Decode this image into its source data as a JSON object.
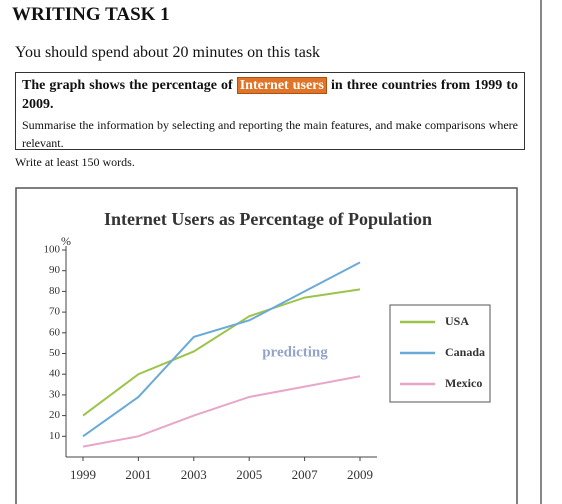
{
  "header": {
    "title": "WRITING TASK 1",
    "instruction": "You should spend about 20 minutes on this task"
  },
  "task": {
    "intro_before": "The graph shows the percentage of",
    "highlight": "Internet users",
    "intro_after": "in three countries from 1999 to 2009.",
    "summary": "Summarise the information by selecting and reporting the main features, and make comparisons where relevant.",
    "word_count": "Write at least 150 words."
  },
  "watermark": "predicting",
  "chart_data": {
    "type": "line",
    "title": "Internet Users as Percentage of Population",
    "y_label": "%",
    "categories": [
      "1999",
      "2001",
      "2003",
      "2005",
      "2007",
      "2009"
    ],
    "series": [
      {
        "name": "USA",
        "color": "#9dc44a",
        "values": [
          20,
          40,
          51,
          68,
          77,
          81
        ]
      },
      {
        "name": "Canada",
        "color": "#6aaad8",
        "values": [
          10,
          29,
          58,
          66,
          80,
          94
        ]
      },
      {
        "name": "Mexico",
        "color": "#e8a6c9",
        "values": [
          5,
          10,
          20,
          29,
          34,
          39
        ]
      }
    ],
    "ylim": [
      0,
      100
    ],
    "yticks": [
      10,
      20,
      30,
      40,
      50,
      60,
      70,
      80,
      90,
      100
    ],
    "legend": "right"
  }
}
